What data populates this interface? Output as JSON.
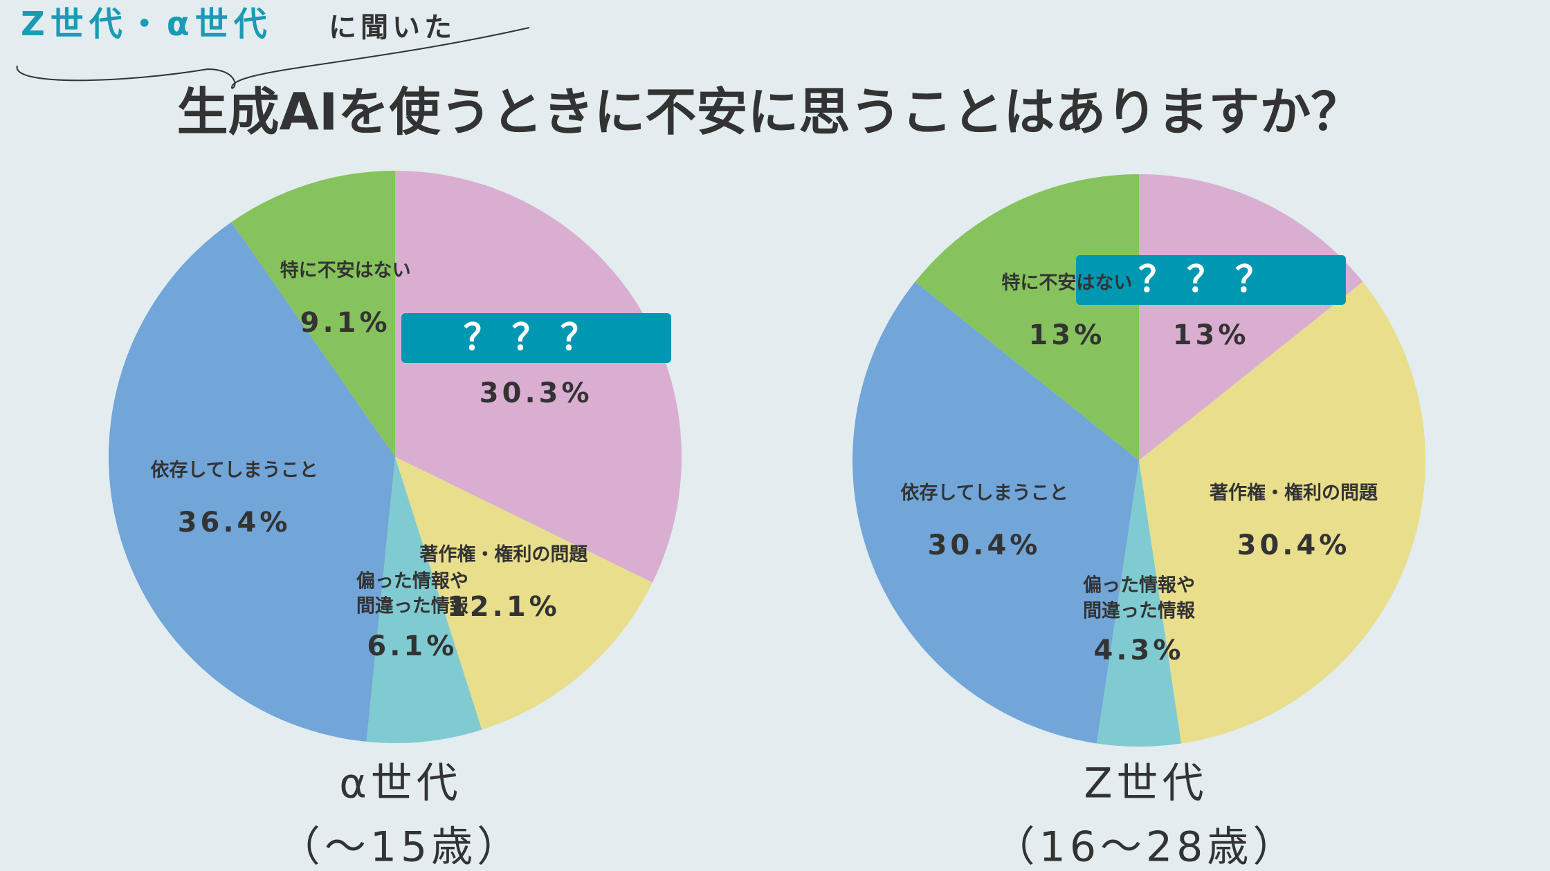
{
  "header": {
    "tag": "Z世代・α世代",
    "tag_suffix": "に聞いた",
    "title": "生成AIを使うときに不安に思うことはありますか？"
  },
  "chart_data": [
    {
      "type": "pie",
      "title": "α世代",
      "subtitle": "（〜15歳）",
      "categories": [
        "？？？",
        "著作権・権利の問題",
        "偏った情報や\n間違った情報",
        "依存してしまうこと",
        "特に不安はない"
      ],
      "values": [
        30.3,
        12.1,
        6.1,
        36.4,
        9.1
      ],
      "value_labels": [
        "30.3%",
        "12.1%",
        "6.1%",
        "36.4%",
        "9.1%"
      ],
      "colors": [
        "#d9aed1",
        "#e8de8c",
        "#80cbd1",
        "#72a5d8",
        "#86c35d"
      ]
    },
    {
      "type": "pie",
      "title": "Z世代",
      "subtitle": "（16〜28歳）",
      "categories": [
        "？？？",
        "著作権・権利の問題",
        "偏った情報や\n間違った情報",
        "依存してしまうこと",
        "特に不安はない"
      ],
      "values": [
        13,
        30.4,
        4.3,
        30.4,
        13
      ],
      "value_labels": [
        "13%",
        "30.4%",
        "4.3%",
        "30.4%",
        "13%"
      ],
      "colors": [
        "#d9aed1",
        "#e8de8c",
        "#80cbd1",
        "#72a5d8",
        "#86c35d"
      ]
    }
  ]
}
